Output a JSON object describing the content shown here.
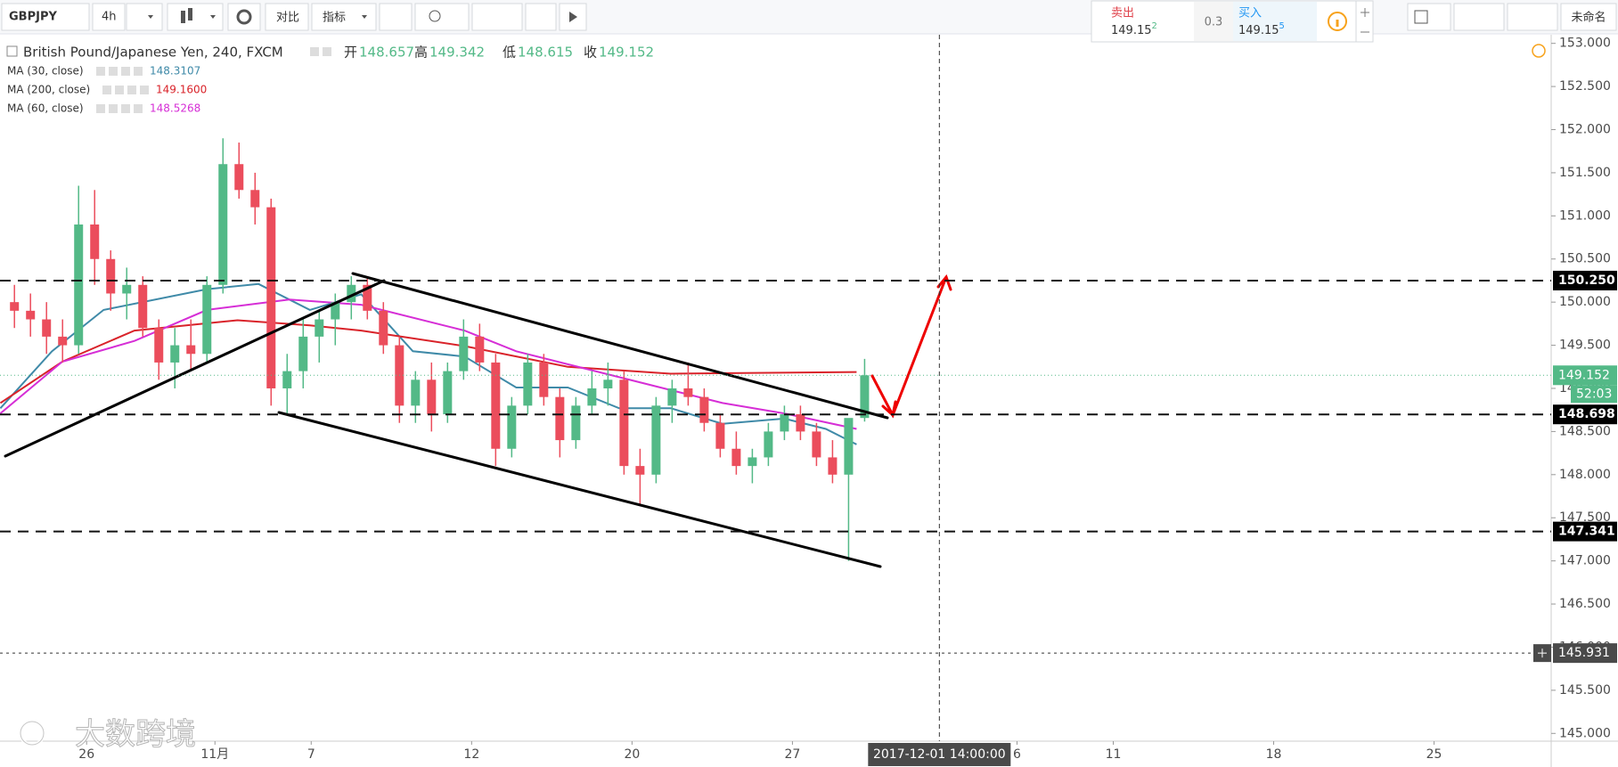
{
  "toolbar": {
    "symbol": "GBPJPY",
    "interval": "4h",
    "compare": "对比",
    "indicators": "指标",
    "layout_name": "未命名"
  },
  "trade_widget": {
    "sell_label": "卖出",
    "sell_price": 149.15,
    "sell_pip": 2,
    "spread": 0.3,
    "buy_label": "买入",
    "buy_price": 149.15,
    "buy_pip": 5
  },
  "watermark": "大数跨境",
  "chart_data": {
    "type": "candlestick",
    "title": "British Pound/Japanese Yen, 240, FXCM",
    "ohlc_names": [
      "开",
      "高",
      "低",
      "收"
    ],
    "up_color": "#53b987",
    "down_color": "#eb4d5c",
    "candles": {
      "x": [
        -2.25,
        -1.75,
        -1.25,
        -0.75,
        -0.25,
        0.25,
        0.75,
        1.25,
        1.75,
        2.25,
        2.75,
        3.25,
        3.75,
        4.25,
        4.75,
        5.25,
        5.75,
        6.25,
        6.75,
        7.25,
        7.75,
        8.25,
        8.75,
        9.25,
        9.75,
        10.25,
        10.75,
        11.25,
        11.75,
        12.25,
        12.75,
        13.25,
        13.75,
        14.25,
        14.75,
        15.25,
        15.75,
        16.25,
        16.75,
        17.25,
        17.75,
        18.25,
        18.75,
        19.25,
        19.75,
        20.25,
        20.75,
        21.25,
        21.75,
        22.25,
        22.75,
        23.25,
        23.75,
        24.25
      ],
      "open": [
        150.0,
        149.9,
        149.8,
        149.6,
        149.5,
        150.9,
        150.5,
        150.1,
        150.2,
        149.7,
        149.3,
        149.5,
        149.4,
        150.2,
        151.6,
        151.3,
        151.1,
        149.0,
        149.2,
        149.6,
        149.8,
        150.0,
        150.2,
        149.9,
        149.5,
        148.8,
        149.1,
        148.7,
        149.2,
        149.6,
        149.3,
        148.3,
        148.8,
        149.3,
        148.9,
        148.4,
        148.8,
        149.0,
        149.1,
        148.1,
        148.0,
        148.8,
        149.0,
        148.9,
        148.6,
        148.3,
        148.1,
        148.2,
        148.5,
        148.7,
        148.5,
        148.2,
        148.0,
        148.657
      ],
      "high": [
        150.2,
        150.1,
        150.0,
        149.8,
        151.35,
        151.3,
        150.6,
        150.4,
        150.3,
        149.8,
        149.7,
        149.8,
        150.3,
        151.9,
        151.85,
        151.5,
        151.2,
        149.4,
        149.8,
        149.9,
        150.1,
        150.3,
        150.3,
        150.0,
        149.6,
        149.2,
        149.3,
        149.3,
        149.8,
        149.75,
        149.4,
        148.9,
        149.4,
        149.4,
        149.0,
        148.9,
        149.2,
        149.3,
        149.2,
        148.3,
        148.9,
        149.1,
        149.3,
        149.0,
        148.7,
        148.5,
        148.3,
        148.6,
        148.8,
        148.8,
        148.6,
        148.4,
        148.3,
        149.342
      ],
      "low": [
        149.7,
        149.6,
        149.4,
        149.3,
        149.4,
        150.2,
        149.9,
        149.8,
        149.6,
        149.1,
        149.0,
        149.2,
        149.3,
        150.1,
        151.2,
        150.9,
        148.8,
        148.7,
        149.0,
        149.3,
        149.5,
        149.8,
        149.8,
        149.4,
        148.6,
        148.6,
        148.5,
        148.6,
        149.1,
        149.2,
        148.1,
        148.2,
        148.7,
        148.8,
        148.2,
        148.3,
        148.7,
        148.8,
        148.0,
        147.65,
        147.9,
        148.6,
        148.8,
        148.5,
        148.2,
        148.0,
        147.9,
        148.1,
        148.4,
        148.4,
        148.1,
        147.9,
        147.0,
        148.615
      ],
      "close": [
        149.9,
        149.8,
        149.6,
        149.5,
        150.9,
        150.5,
        150.1,
        150.2,
        149.7,
        149.3,
        149.5,
        149.4,
        150.2,
        151.6,
        151.3,
        151.1,
        149.0,
        149.2,
        149.6,
        149.8,
        150.0,
        150.2,
        149.9,
        149.5,
        148.8,
        149.1,
        148.7,
        149.2,
        149.6,
        149.3,
        148.3,
        148.8,
        149.3,
        148.9,
        148.4,
        148.8,
        149.0,
        149.1,
        148.1,
        148.0,
        148.8,
        149.0,
        148.9,
        148.6,
        148.3,
        148.1,
        148.2,
        148.5,
        148.7,
        148.5,
        148.2,
        148.0,
        148.657,
        149.152
      ]
    },
    "series": [
      {
        "name": "MA (30, close)",
        "color": "#3f8aa8",
        "legend_value": "148.3107",
        "x": [
          -2.69,
          -1.08,
          0.53,
          3.75,
          5.36,
          6.96,
          8.56,
          10.17,
          11.78,
          13.39,
          15.0,
          16.6,
          18.21,
          19.82,
          21.75,
          23.04,
          24.0
        ],
        "values": [
          148.77,
          149.43,
          149.91,
          150.15,
          150.21,
          149.91,
          150.09,
          149.43,
          149.37,
          149.01,
          149.01,
          148.77,
          148.77,
          148.59,
          148.65,
          148.53,
          148.35
        ]
      },
      {
        "name": "MA (200, close)",
        "color": "#d9232a",
        "legend_value": "149.1600",
        "x": [
          -2.69,
          -0.76,
          1.49,
          4.7,
          6.96,
          8.56,
          11.78,
          15.0,
          18.2,
          24.0
        ],
        "values": [
          148.83,
          149.31,
          149.67,
          149.79,
          149.73,
          149.67,
          149.49,
          149.25,
          149.17,
          149.19
        ]
      },
      {
        "name": "MA (60, close)",
        "color": "#d62ed6",
        "legend_value": "148.5268",
        "x": [
          -2.69,
          -0.76,
          1.49,
          3.75,
          6.32,
          8.56,
          11.78,
          13.39,
          16.6,
          19.82,
          21.75,
          24.0
        ],
        "values": [
          148.71,
          149.31,
          149.55,
          149.91,
          150.03,
          149.97,
          149.67,
          149.43,
          149.13,
          148.83,
          148.71,
          148.53
        ]
      }
    ],
    "xlim": [
      -2.7,
      45.65
    ],
    "xticks": [
      {
        "value": 0,
        "label": "26"
      },
      {
        "value": 4,
        "label": "11月"
      },
      7,
      12,
      {
        "value": 17,
        "label": "20"
      },
      {
        "value": 22,
        "label": "27"
      },
      {
        "value": 29,
        "label": "6"
      },
      {
        "value": 32,
        "label": "11"
      },
      {
        "value": 37,
        "label": "18"
      },
      {
        "value": 42,
        "label": "25"
      }
    ],
    "ylim": [
      144.91,
      153.1
    ],
    "yticks": [
      {
        "value": 145,
        "label": "145.000"
      },
      {
        "value": 145.5,
        "label": "145.500"
      },
      {
        "value": 146,
        "label": "146.000"
      },
      {
        "value": 146.5,
        "label": "146.500"
      },
      {
        "value": 147,
        "label": "147.000"
      },
      {
        "value": 147.5,
        "label": "147.500"
      },
      {
        "value": 148,
        "label": "148.000"
      },
      {
        "value": 148.5,
        "label": "148.500"
      },
      {
        "value": 149,
        "label": "149.000"
      },
      {
        "value": 149.5,
        "label": "149.500"
      },
      {
        "value": 150,
        "label": "150.000"
      },
      {
        "value": 150.5,
        "label": "150.500"
      },
      {
        "value": 151,
        "label": "151.000"
      },
      {
        "value": 151.5,
        "label": "151.500"
      },
      {
        "value": 152,
        "label": "152.000"
      },
      {
        "value": 152.5,
        "label": "152.500"
      },
      {
        "value": 153,
        "label": "153.000"
      }
    ],
    "hlines": [
      {
        "value": 150.25,
        "label": "150.250"
      },
      {
        "value": 148.698,
        "label": "148.698"
      },
      {
        "value": 147.341,
        "label": "147.341"
      }
    ],
    "countdown": "52:03",
    "crosshair": {
      "x": 26.58,
      "label": "2017-12-01 14:00:00",
      "y": {
        "value": 145.931,
        "label": "145.931"
      }
    }
  }
}
